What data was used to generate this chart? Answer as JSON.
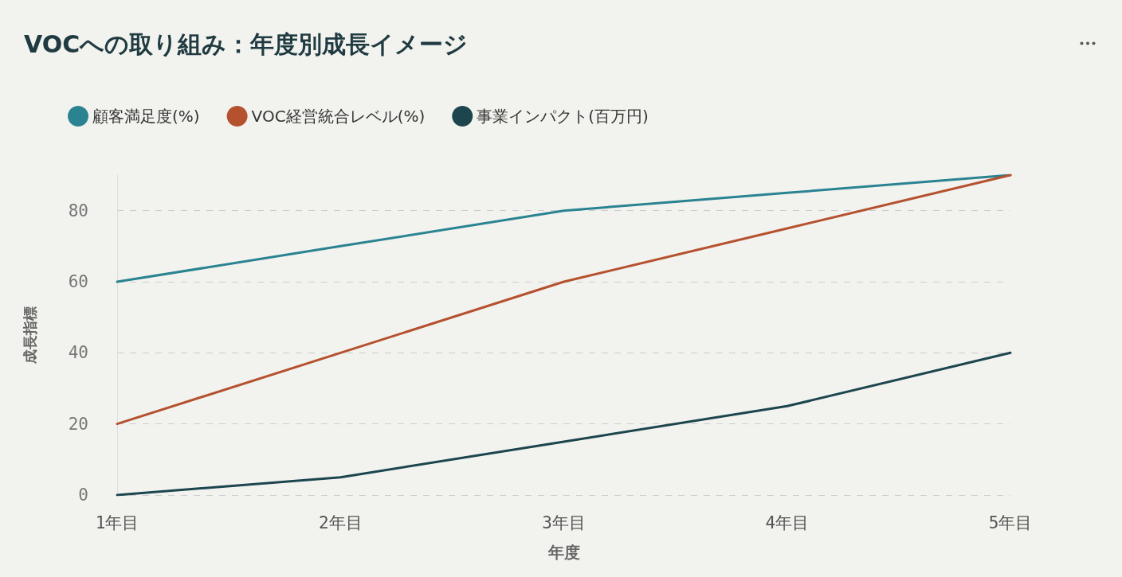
{
  "chart_data": {
    "type": "line",
    "title": "VOCへの取り組み：年度別成長イメージ",
    "xlabel": "年度",
    "ylabel": "成長指標",
    "categories": [
      "1年目",
      "2年目",
      "3年目",
      "4年目",
      "5年目"
    ],
    "series": [
      {
        "name": "顧客満足度(%)",
        "color": "#2a8391",
        "values": [
          60,
          70,
          80,
          85,
          90
        ]
      },
      {
        "name": "VOC経営統合レベル(%)",
        "color": "#b5512f",
        "values": [
          20,
          40,
          60,
          75,
          90
        ]
      },
      {
        "name": "事業インパクト(百万円)",
        "color": "#1c454e",
        "values": [
          0,
          5,
          15,
          25,
          40
        ]
      }
    ],
    "ylim": [
      0,
      90
    ],
    "yticks": [
      0,
      20,
      40,
      60,
      80
    ],
    "grid": "y",
    "legend": "top left",
    "marker": "none",
    "line_style": "solid"
  }
}
